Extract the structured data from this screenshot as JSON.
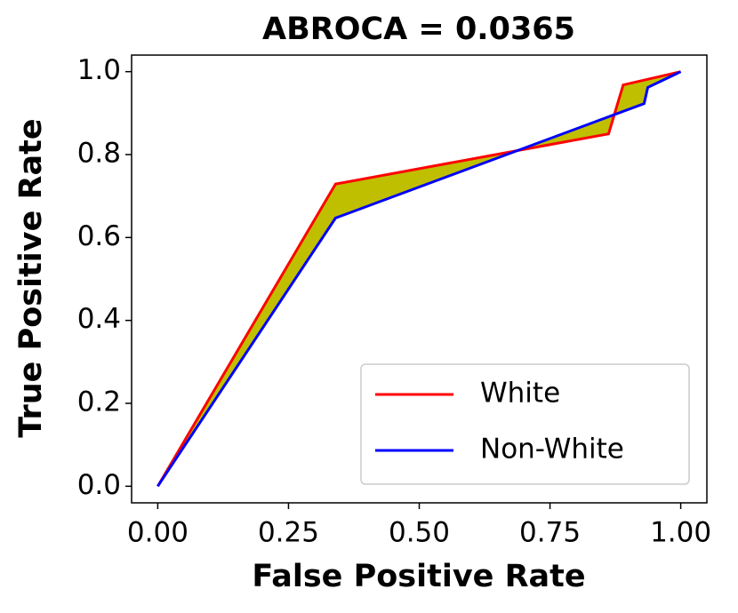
{
  "chart_data": {
    "type": "line",
    "title": "ABROCA = 0.0365",
    "x_label": "False Positive Rate",
    "y_label": "True Positive Rate",
    "series": [
      {
        "name": "White",
        "color": "#ff0000",
        "x": [
          0,
          0.34,
          0.862,
          0.89,
          1
        ],
        "values": [
          0,
          0.729,
          0.85,
          0.968,
          1
        ]
      },
      {
        "name": "Non-White",
        "color": "#0000ff",
        "x": [
          0,
          0.34,
          0.93,
          0.937,
          1
        ],
        "values": [
          0,
          0.647,
          0.923,
          0.962,
          1
        ]
      }
    ],
    "fill_between_color": "#bfbf00",
    "xlim": [
      -0.05,
      1.05
    ],
    "ylim": [
      -0.04,
      1.04
    ],
    "xticks": [
      {
        "value": 0,
        "label": "0.00"
      },
      {
        "value": 0.25,
        "label": "0.25"
      },
      {
        "value": 0.5,
        "label": "0.50"
      },
      {
        "value": 0.75,
        "label": "0.75"
      },
      {
        "value": 1,
        "label": "1.00"
      }
    ],
    "yticks": [
      {
        "value": 0,
        "label": "0.0"
      },
      0.2,
      0.4,
      0.6,
      0.8,
      {
        "value": 1,
        "label": "1.0"
      }
    ],
    "grid": false,
    "legend_position": "lower-right"
  }
}
